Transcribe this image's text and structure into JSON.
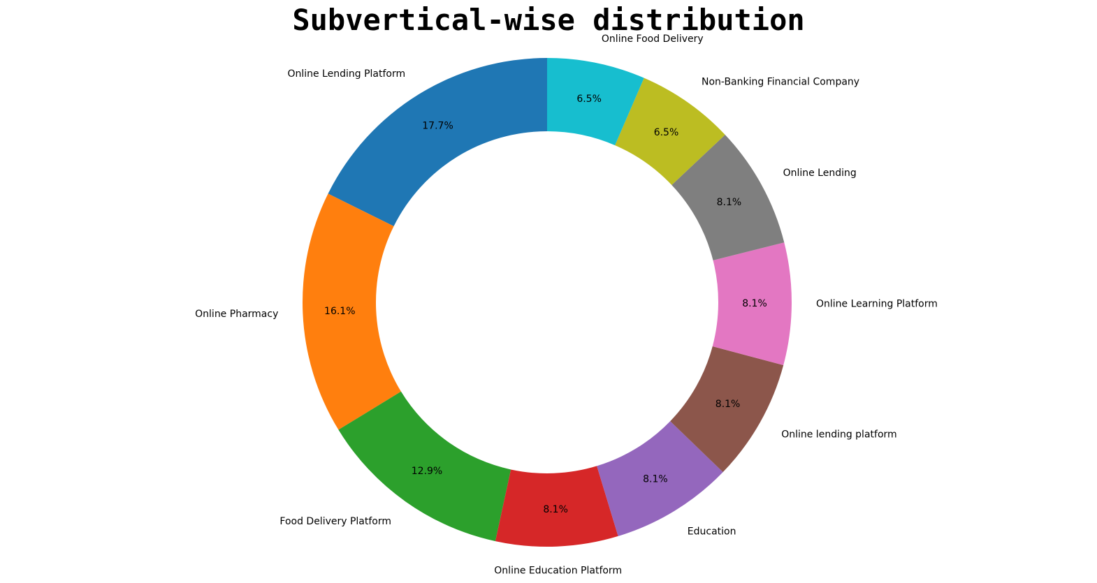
{
  "chart_data": {
    "type": "pie",
    "title": "Subvertical-wise distribution",
    "donut": true,
    "categories": [
      "Online Lending Platform",
      "Online Pharmacy",
      "Food Delivery Platform",
      "Online Education Platform",
      "Education",
      "Online lending platform",
      "Online Learning Platform",
      "Online Lending",
      "Non-Banking Financial Company",
      "Online Food Delivery"
    ],
    "values": [
      17.7,
      16.1,
      12.9,
      8.1,
      8.1,
      8.1,
      8.1,
      8.1,
      6.5,
      6.5
    ],
    "percent_labels": [
      "17.7%",
      "16.1%",
      "12.9%",
      "8.1%",
      "8.1%",
      "8.1%",
      "8.1%",
      "8.1%",
      "6.5%",
      "6.5%"
    ],
    "colors": [
      "#1f77b4",
      "#ff7f0e",
      "#2ca02c",
      "#d62728",
      "#9467bd",
      "#8c564b",
      "#e377c2",
      "#7f7f7f",
      "#bcbd22",
      "#17becf"
    ],
    "start_angle_deg": 90,
    "direction": "counterclockwise"
  }
}
